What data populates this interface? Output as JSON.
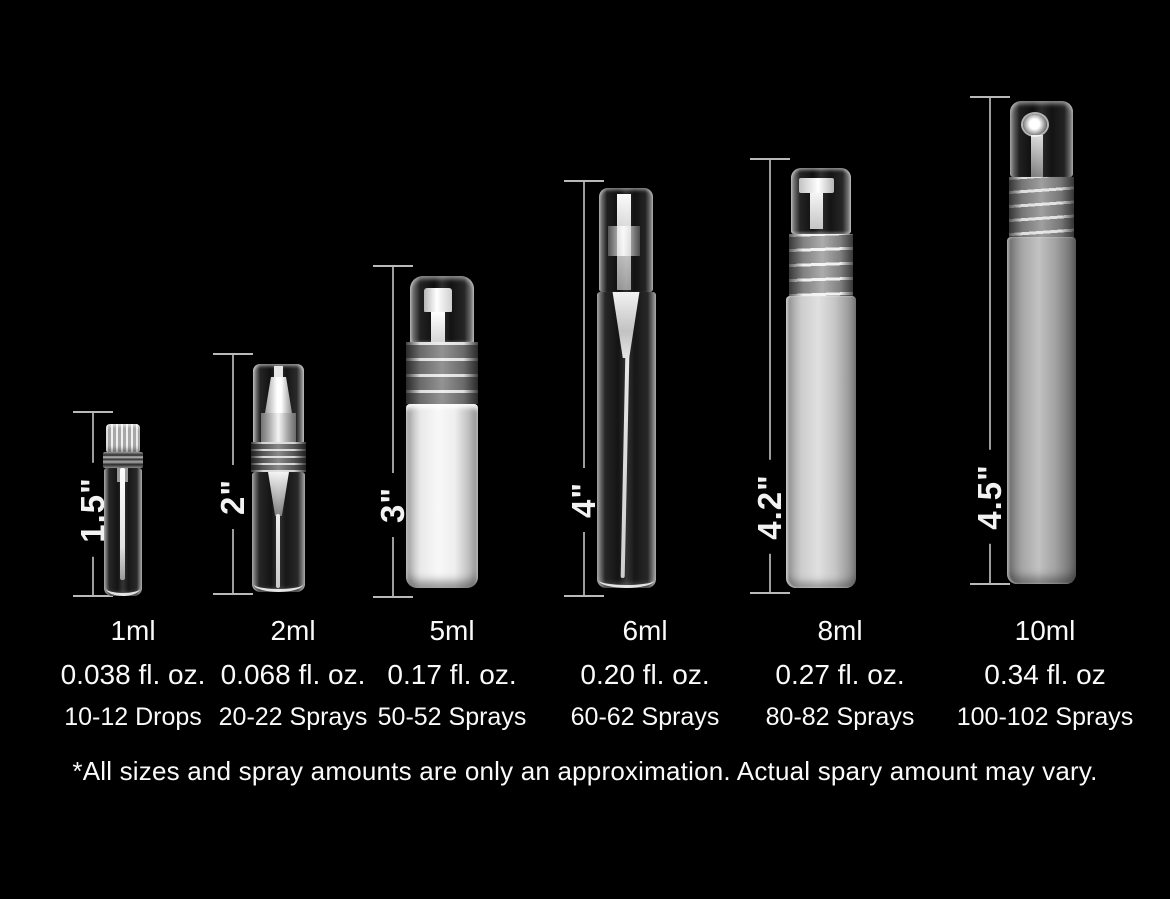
{
  "page": {
    "background_color": "#000000",
    "text_color": "#fafafa",
    "footnote": "*All sizes and spray amounts are only an approximation. Actual spary amount may vary."
  },
  "bottles": [
    {
      "height_label": "1.5\"",
      "volume": "1ml",
      "fl_oz": "0.038 fl. oz.",
      "sprays": "10-12 Drops",
      "appearance": "clear glass vial with white ribbed cap and inner applicator"
    },
    {
      "height_label": "2\"",
      "volume": "2ml",
      "fl_oz": "0.068 fl. oz.",
      "sprays": "20-22 Sprays",
      "appearance": "clear spray vial with tall clear overcap and visible pump"
    },
    {
      "height_label": "3\"",
      "volume": "5ml",
      "fl_oz": "0.17 fl. oz.",
      "sprays": "50-52 Sprays",
      "appearance": "frosted white bottle with domed clear cap and ribbed collar"
    },
    {
      "height_label": "4\"",
      "volume": "6ml",
      "fl_oz": "0.20 fl. oz.",
      "sprays": "60-62 Sprays",
      "appearance": "slim clear bottle with clear cap and visible dip tube"
    },
    {
      "height_label": "4.2\"",
      "volume": "8ml",
      "fl_oz": "0.27 fl. oz.",
      "sprays": "80-82 Sprays",
      "appearance": "frosted bottle with flat-top clear cap and ribbed collar"
    },
    {
      "height_label": "4.5\"",
      "volume": "10ml",
      "fl_oz": "0.34 fl. oz",
      "sprays": "100-102 Sprays",
      "appearance": "tall frosted bottle with clear cap showing round nozzle"
    }
  ]
}
